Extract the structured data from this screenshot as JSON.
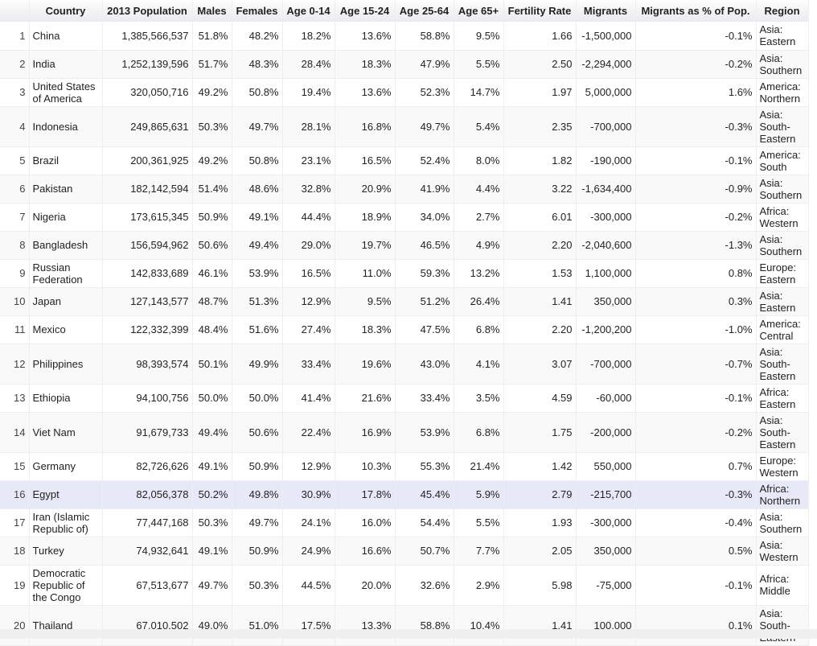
{
  "headers": [
    "",
    "Country",
    "2013 Population",
    "Males",
    "Females",
    "Age 0-14",
    "Age 15-24",
    "Age 25-64",
    "Age 65+",
    "Fertility Rate",
    "Migrants",
    "Migrants as % of Pop.",
    "Region"
  ],
  "selected_row": 16,
  "rows": [
    [
      "1",
      "China",
      "1,385,566,537",
      "51.8%",
      "48.2%",
      "18.2%",
      "13.6%",
      "58.8%",
      "9.5%",
      "1.66",
      "-1,500,000",
      "-0.1%",
      "Asia: Eastern"
    ],
    [
      "2",
      "India",
      "1,252,139,596",
      "51.7%",
      "48.3%",
      "28.4%",
      "18.3%",
      "47.9%",
      "5.5%",
      "2.50",
      "-2,294,000",
      "-0.2%",
      "Asia: Southern"
    ],
    [
      "3",
      "United States of America",
      "320,050,716",
      "49.2%",
      "50.8%",
      "19.4%",
      "13.6%",
      "52.3%",
      "14.7%",
      "1.97",
      "5,000,000",
      "1.6%",
      "America: Northern"
    ],
    [
      "4",
      "Indonesia",
      "249,865,631",
      "50.3%",
      "49.7%",
      "28.1%",
      "16.8%",
      "49.7%",
      "5.4%",
      "2.35",
      "-700,000",
      "-0.3%",
      "Asia: South-Eastern"
    ],
    [
      "5",
      "Brazil",
      "200,361,925",
      "49.2%",
      "50.8%",
      "23.1%",
      "16.5%",
      "52.4%",
      "8.0%",
      "1.82",
      "-190,000",
      "-0.1%",
      "America: South"
    ],
    [
      "6",
      "Pakistan",
      "182,142,594",
      "51.4%",
      "48.6%",
      "32.8%",
      "20.9%",
      "41.9%",
      "4.4%",
      "3.22",
      "-1,634,400",
      "-0.9%",
      "Asia: Southern"
    ],
    [
      "7",
      "Nigeria",
      "173,615,345",
      "50.9%",
      "49.1%",
      "44.4%",
      "18.9%",
      "34.0%",
      "2.7%",
      "6.01",
      "-300,000",
      "-0.2%",
      "Africa: Western"
    ],
    [
      "8",
      "Bangladesh",
      "156,594,962",
      "50.6%",
      "49.4%",
      "29.0%",
      "19.7%",
      "46.5%",
      "4.9%",
      "2.20",
      "-2,040,600",
      "-1.3%",
      "Asia: Southern"
    ],
    [
      "9",
      "Russian Federation",
      "142,833,689",
      "46.1%",
      "53.9%",
      "16.5%",
      "11.0%",
      "59.3%",
      "13.2%",
      "1.53",
      "1,100,000",
      "0.8%",
      "Europe: Eastern"
    ],
    [
      "10",
      "Japan",
      "127,143,577",
      "48.7%",
      "51.3%",
      "12.9%",
      "9.5%",
      "51.2%",
      "26.4%",
      "1.41",
      "350,000",
      "0.3%",
      "Asia: Eastern"
    ],
    [
      "11",
      "Mexico",
      "122,332,399",
      "48.4%",
      "51.6%",
      "27.4%",
      "18.3%",
      "47.5%",
      "6.8%",
      "2.20",
      "-1,200,200",
      "-1.0%",
      "America: Central"
    ],
    [
      "12",
      "Philippines",
      "98,393,574",
      "50.1%",
      "49.9%",
      "33.4%",
      "19.6%",
      "43.0%",
      "4.1%",
      "3.07",
      "-700,000",
      "-0.7%",
      "Asia: South-Eastern"
    ],
    [
      "13",
      "Ethiopia",
      "94,100,756",
      "50.0%",
      "50.0%",
      "41.4%",
      "21.6%",
      "33.4%",
      "3.5%",
      "4.59",
      "-60,000",
      "-0.1%",
      "Africa: Eastern"
    ],
    [
      "14",
      "Viet Nam",
      "91,679,733",
      "49.4%",
      "50.6%",
      "22.4%",
      "16.9%",
      "53.9%",
      "6.8%",
      "1.75",
      "-200,000",
      "-0.2%",
      "Asia: South-Eastern"
    ],
    [
      "15",
      "Germany",
      "82,726,626",
      "49.1%",
      "50.9%",
      "12.9%",
      "10.3%",
      "55.3%",
      "21.4%",
      "1.42",
      "550,000",
      "0.7%",
      "Europe: Western"
    ],
    [
      "16",
      "Egypt",
      "82,056,378",
      "50.2%",
      "49.8%",
      "30.9%",
      "17.8%",
      "45.4%",
      "5.9%",
      "2.79",
      "-215,700",
      "-0.3%",
      "Africa: Northern"
    ],
    [
      "17",
      "Iran (Islamic Republic of)",
      "77,447,168",
      "50.3%",
      "49.7%",
      "24.1%",
      "16.0%",
      "54.4%",
      "5.5%",
      "1.93",
      "-300,000",
      "-0.4%",
      "Asia: Southern"
    ],
    [
      "18",
      "Turkey",
      "74,932,641",
      "49.1%",
      "50.9%",
      "24.9%",
      "16.6%",
      "50.7%",
      "7.7%",
      "2.05",
      "350,000",
      "0.5%",
      "Asia: Western"
    ],
    [
      "19",
      "Democratic Republic of the Congo",
      "67,513,677",
      "49.7%",
      "50.3%",
      "44.5%",
      "20.0%",
      "32.6%",
      "2.9%",
      "5.98",
      "-75,000",
      "-0.1%",
      "Africa: Middle"
    ],
    [
      "20",
      "Thailand",
      "67,010,502",
      "49.0%",
      "51.0%",
      "17.5%",
      "13.3%",
      "58.8%",
      "10.4%",
      "1.41",
      "100,000",
      "0.1%",
      "Asia: South-Eastern"
    ]
  ]
}
